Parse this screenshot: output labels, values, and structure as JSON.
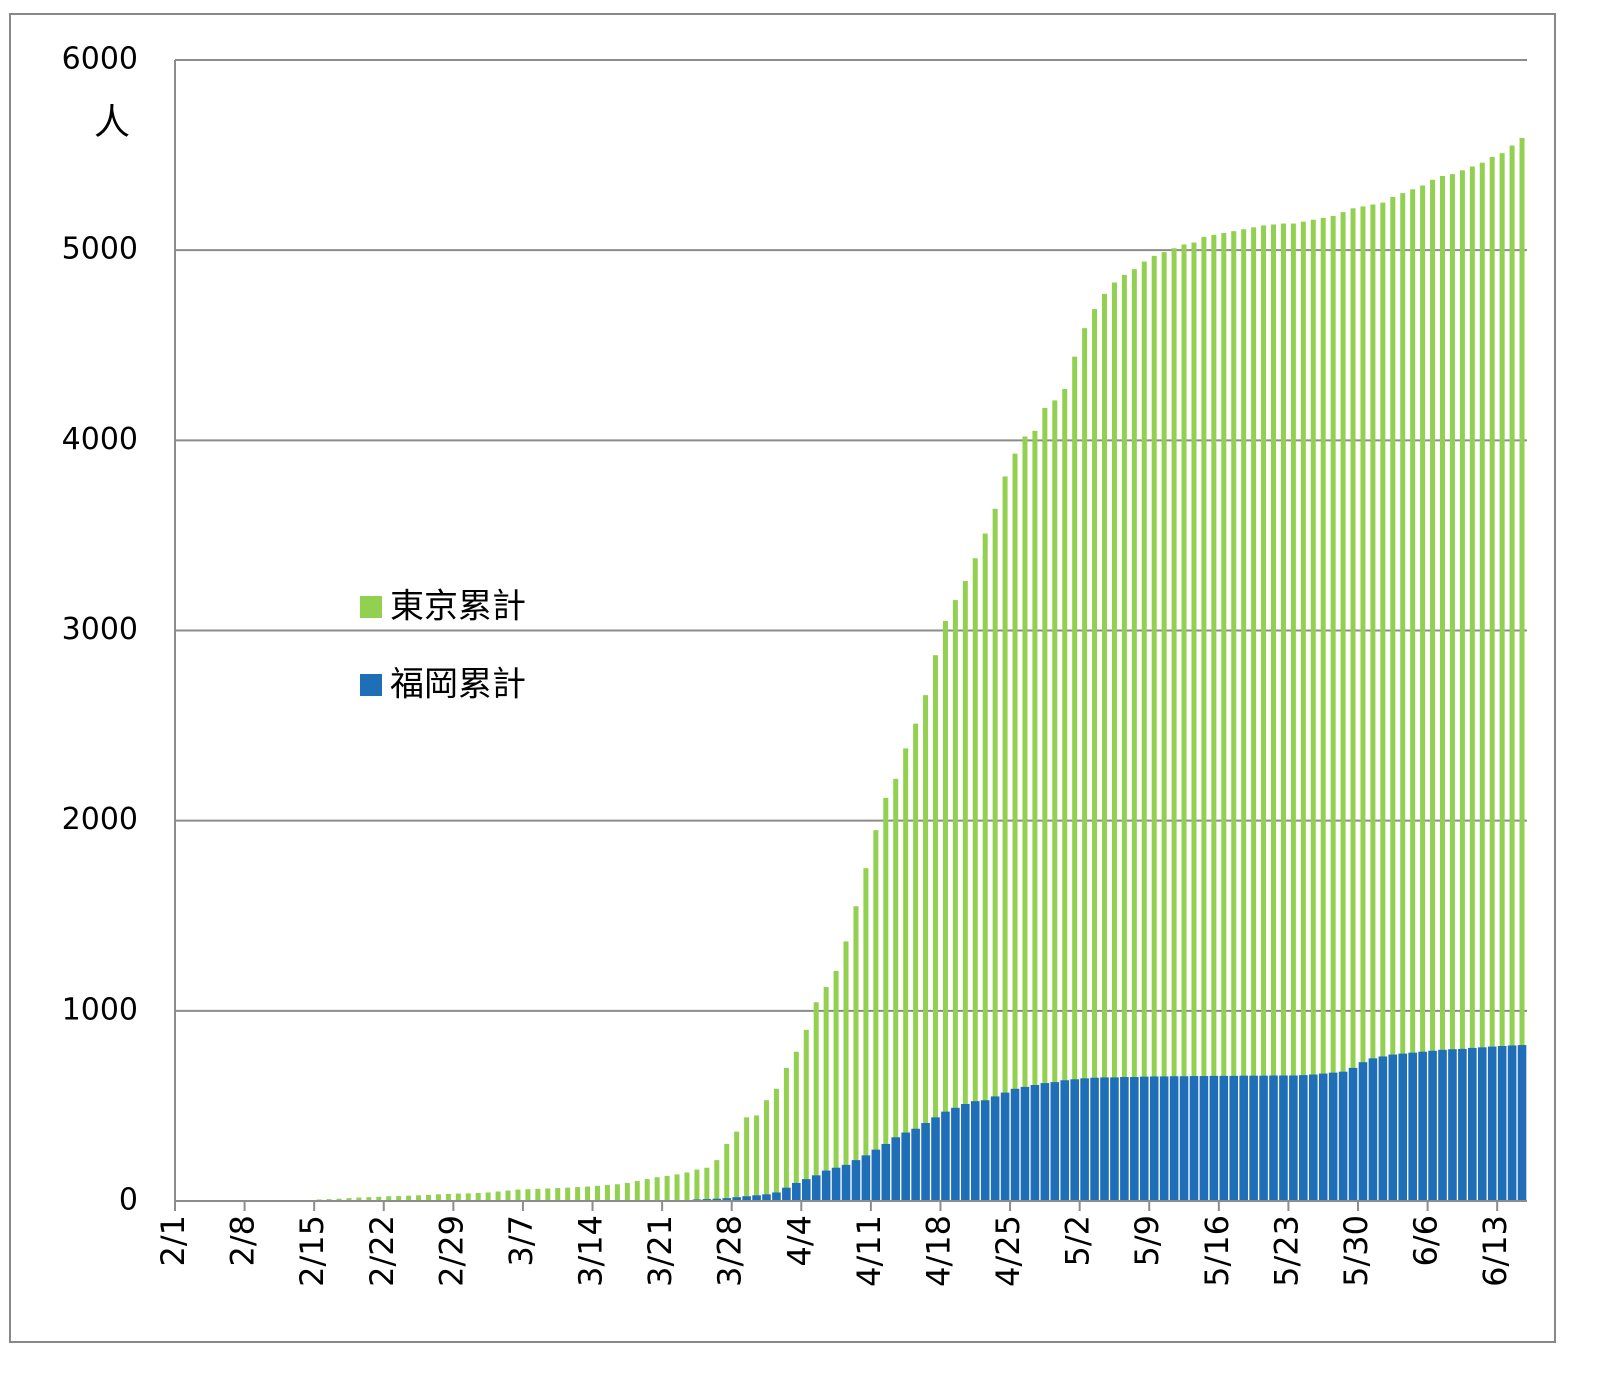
{
  "chart_data": {
    "type": "bar",
    "ylabel": "人",
    "categories": [
      "2/1",
      null,
      null,
      null,
      null,
      null,
      null,
      "2/8",
      null,
      null,
      null,
      null,
      null,
      null,
      "2/15",
      null,
      null,
      null,
      null,
      null,
      null,
      "2/22",
      null,
      null,
      null,
      null,
      null,
      null,
      "2/29",
      null,
      null,
      null,
      null,
      null,
      null,
      "3/7",
      null,
      null,
      null,
      null,
      null,
      null,
      "3/14",
      null,
      null,
      null,
      null,
      null,
      null,
      "3/21",
      null,
      null,
      null,
      null,
      null,
      null,
      "3/28",
      null,
      null,
      null,
      null,
      null,
      null,
      "4/4",
      null,
      null,
      null,
      null,
      null,
      null,
      "4/11",
      null,
      null,
      null,
      null,
      null,
      null,
      "4/18",
      null,
      null,
      null,
      null,
      null,
      null,
      "4/25",
      null,
      null,
      null,
      null,
      null,
      null,
      "5/2",
      null,
      null,
      null,
      null,
      null,
      null,
      "5/9",
      null,
      null,
      null,
      null,
      null,
      null,
      "5/16",
      null,
      null,
      null,
      null,
      null,
      null,
      "5/23",
      null,
      null,
      null,
      null,
      null,
      null,
      "5/30",
      null,
      null,
      null,
      null,
      null,
      null,
      "6/6",
      null,
      null,
      null,
      null,
      null,
      null,
      "6/13",
      null,
      null
    ],
    "series": [
      {
        "name": "東京累計",
        "color": "#92d050",
        "values": [
          0,
          0,
          0,
          0,
          0,
          0,
          0,
          0,
          0,
          0,
          0,
          0,
          0,
          0,
          8,
          10,
          12,
          15,
          18,
          20,
          22,
          25,
          26,
          28,
          30,
          32,
          35,
          37,
          39,
          40,
          42,
          45,
          50,
          55,
          60,
          62,
          64,
          66,
          68,
          70,
          73,
          76,
          80,
          84,
          88,
          95,
          105,
          115,
          125,
          132,
          140,
          150,
          165,
          175,
          215,
          300,
          365,
          440,
          450,
          530,
          590,
          700,
          785,
          900,
          1045,
          1125,
          1210,
          1365,
          1550,
          1750,
          1950,
          2120,
          2220,
          2380,
          2510,
          2660,
          2870,
          3050,
          3160,
          3260,
          3380,
          3510,
          3640,
          3810,
          3930,
          4020,
          4050,
          4170,
          4210,
          4270,
          4440,
          4590,
          4690,
          4770,
          4830,
          4870,
          4900,
          4940,
          4970,
          4990,
          5010,
          5030,
          5040,
          5070,
          5080,
          5090,
          5100,
          5110,
          5120,
          5130,
          5135,
          5140,
          5140,
          5150,
          5160,
          5170,
          5180,
          5200,
          5220,
          5230,
          5240,
          5250,
          5280,
          5300,
          5320,
          5340,
          5370,
          5390,
          5400,
          5420,
          5440,
          5460,
          5490,
          5510,
          5550,
          5590
        ]
      },
      {
        "name": "福岡累計",
        "color": "#1f6fb8",
        "values": [
          0,
          0,
          0,
          0,
          0,
          0,
          0,
          0,
          0,
          0,
          0,
          0,
          0,
          0,
          0,
          0,
          0,
          0,
          0,
          0,
          0,
          0,
          0,
          0,
          0,
          0,
          0,
          0,
          0,
          0,
          0,
          0,
          0,
          0,
          0,
          0,
          0,
          0,
          0,
          0,
          0,
          0,
          0,
          0,
          0,
          0,
          0,
          0,
          0,
          3,
          5,
          5,
          8,
          10,
          12,
          15,
          20,
          25,
          30,
          35,
          45,
          70,
          95,
          115,
          135,
          160,
          175,
          190,
          215,
          240,
          270,
          300,
          335,
          360,
          380,
          410,
          440,
          470,
          490,
          510,
          525,
          530,
          550,
          570,
          590,
          600,
          610,
          620,
          625,
          635,
          640,
          645,
          648,
          650,
          650,
          652,
          652,
          654,
          655,
          655,
          656,
          656,
          657,
          657,
          658,
          658,
          658,
          659,
          659,
          659,
          660,
          660,
          660,
          662,
          665,
          670,
          675,
          680,
          700,
          730,
          750,
          760,
          770,
          775,
          780,
          785,
          790,
          795,
          798,
          800,
          805,
          808,
          812,
          815,
          818,
          820
        ]
      }
    ],
    "ylim": [
      0,
      6000
    ],
    "yticks": [
      0,
      1000,
      2000,
      3000,
      4000,
      5000,
      6000
    ],
    "grid": true,
    "overlap": true
  }
}
